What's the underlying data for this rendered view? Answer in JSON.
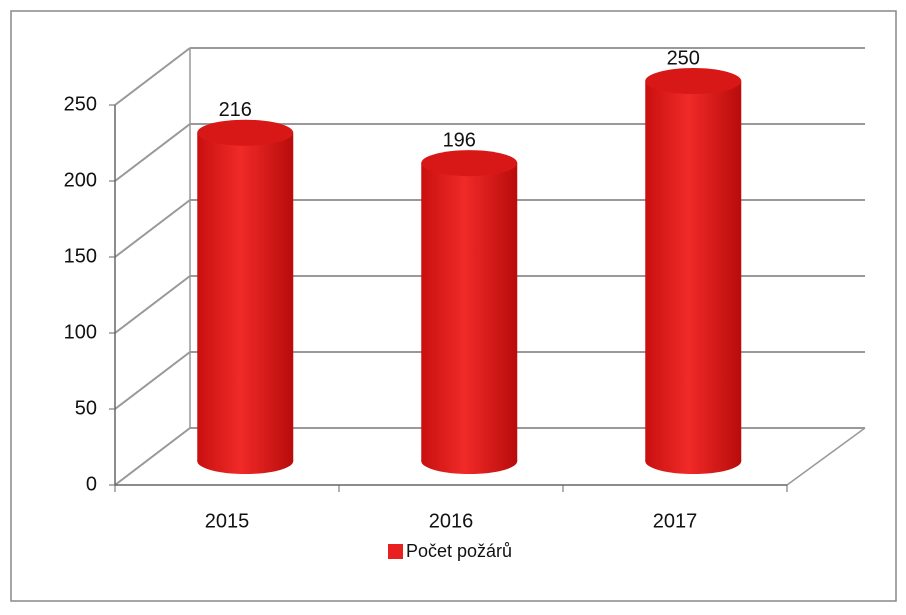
{
  "chart_data": {
    "type": "bar3d",
    "categories": [
      "2015",
      "2016",
      "2017"
    ],
    "series": [
      {
        "name": "Počet požárů",
        "color": "#e8201f",
        "values": [
          216,
          196,
          250
        ]
      }
    ],
    "ylim": [
      0,
      250
    ],
    "yticks": [
      0,
      50,
      100,
      150,
      200,
      250
    ],
    "grid": true,
    "legend": "bottom"
  }
}
